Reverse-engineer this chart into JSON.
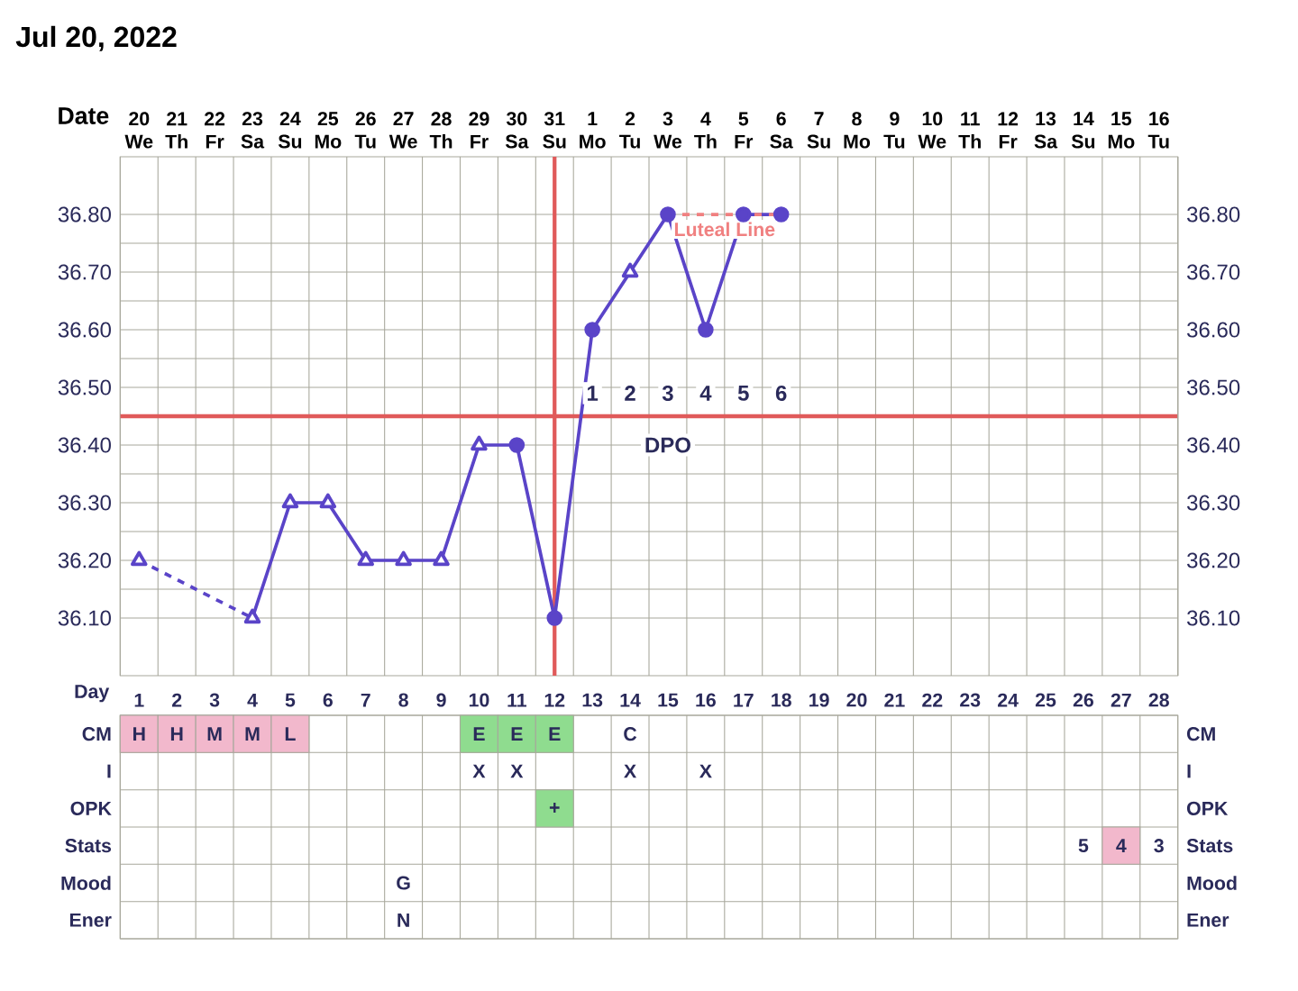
{
  "chart_data": [
    {
      "type": "line",
      "title": "Jul 20, 2022",
      "xlabel": "Date",
      "categories": [
        "20 We",
        "21 Th",
        "22 Fr",
        "23 Sa",
        "24 Su",
        "25 Mo",
        "26 Tu",
        "27 We",
        "28 Th",
        "29 Fr",
        "30 Sa",
        "31 Su",
        "1 Mo",
        "2 Tu",
        "3 We",
        "4 Th",
        "5 Fr",
        "6 Sa",
        "7 Su",
        "8 Mo",
        "9 Tu",
        "10 We",
        "11 Th",
        "12 Fr",
        "13 Sa",
        "14 Su",
        "15 Mo",
        "16 Tu"
      ],
      "series": [
        {
          "color": "#5a44c8",
          "line_style": "dashed",
          "marker": "none",
          "values": [
            36.2,
            null,
            null,
            36.1,
            null,
            null,
            null,
            null,
            null,
            null,
            null,
            null,
            null,
            null,
            null,
            null,
            null,
            null,
            null,
            null,
            null,
            null,
            null,
            null,
            null,
            null,
            null,
            null
          ]
        },
        {
          "color": "#5a44c8",
          "line_style": "solid",
          "marker": "none",
          "values": [
            null,
            null,
            null,
            36.1,
            36.3,
            36.3,
            36.2,
            36.2,
            36.2,
            36.4,
            36.4,
            36.1,
            36.6,
            36.7,
            36.8,
            36.6,
            36.8,
            36.8,
            null,
            null,
            null,
            null,
            null,
            null,
            null,
            null,
            null,
            null
          ]
        },
        {
          "type": "scatter",
          "color": "#5a44c8",
          "marker": "triangle",
          "values": [
            36.2,
            null,
            null,
            36.1,
            36.3,
            36.3,
            36.2,
            36.2,
            36.2,
            36.4,
            null,
            null,
            null,
            36.7,
            null,
            null,
            null,
            null,
            null,
            null,
            null,
            null,
            null,
            null,
            null,
            null,
            null,
            null
          ]
        },
        {
          "type": "scatter",
          "color": "#5a44c8",
          "marker": "circle",
          "values": [
            null,
            null,
            null,
            null,
            null,
            null,
            null,
            null,
            null,
            null,
            36.4,
            36.1,
            36.6,
            null,
            36.8,
            36.6,
            36.8,
            36.8,
            null,
            null,
            null,
            null,
            null,
            null,
            null,
            null,
            null,
            null
          ]
        },
        {
          "name": "Luteal Line",
          "color": "#f08080",
          "line_style": "dashed",
          "marker": "none",
          "values": [
            null,
            null,
            null,
            null,
            null,
            null,
            null,
            null,
            null,
            null,
            null,
            null,
            null,
            null,
            36.8,
            36.8,
            36.8,
            36.8,
            null,
            null,
            null,
            null,
            null,
            null,
            null,
            null,
            null,
            null
          ]
        }
      ],
      "ylim": [
        36.0,
        36.9
      ],
      "yticks": [
        {
          "value": 36.1,
          "label": "36.10"
        },
        {
          "value": 36.2,
          "label": "36.20"
        },
        {
          "value": 36.3,
          "label": "36.30"
        },
        {
          "value": 36.4,
          "label": "36.40"
        },
        {
          "value": 36.5,
          "label": "36.50"
        },
        {
          "value": 36.6,
          "label": "36.60"
        },
        {
          "value": 36.7,
          "label": "36.70"
        },
        {
          "value": 36.8,
          "label": "36.80"
        }
      ],
      "y2lim": [
        36.0,
        36.9
      ],
      "y2ticks": [
        {
          "value": 36.1,
          "label": "36.10"
        },
        {
          "value": 36.2,
          "label": "36.20"
        },
        {
          "value": 36.3,
          "label": "36.30"
        },
        {
          "value": 36.4,
          "label": "36.40"
        },
        {
          "value": 36.5,
          "label": "36.50"
        },
        {
          "value": 36.6,
          "label": "36.60"
        },
        {
          "value": 36.7,
          "label": "36.70"
        },
        {
          "value": 36.8,
          "label": "36.80"
        }
      ],
      "grid": true,
      "ref_lines": [
        {
          "axis": "x",
          "value": "31 Su",
          "color": "#e05a5a"
        },
        {
          "axis": "y",
          "value": 36.45,
          "color": "#e05a5a"
        }
      ],
      "annotations": [
        {
          "text": "1",
          "x": "1 Mo",
          "y": 36.49
        },
        {
          "text": "2",
          "x": "2 Tu",
          "y": 36.49
        },
        {
          "text": "3",
          "x": "3 We",
          "y": 36.49
        },
        {
          "text": "4",
          "x": "4 Th",
          "y": 36.49
        },
        {
          "text": "5",
          "x": "5 Fr",
          "y": 36.49
        },
        {
          "text": "6",
          "x": "6 Sa",
          "y": 36.49
        },
        {
          "text": "DPO",
          "x": "3 We",
          "y": 36.4
        }
      ]
    },
    {
      "type": "heatmap",
      "xlabel": "Day",
      "categories": [
        "1",
        "2",
        "3",
        "4",
        "5",
        "6",
        "7",
        "8",
        "9",
        "10",
        "11",
        "12",
        "13",
        "14",
        "15",
        "16",
        "17",
        "18",
        "19",
        "20",
        "21",
        "22",
        "23",
        "24",
        "25",
        "26",
        "27",
        "28"
      ],
      "y_categories": [
        "CM",
        "I",
        "OPK",
        "Stats",
        "Mood",
        "Ener"
      ],
      "y2_categories": [
        "CM",
        "I",
        "OPK",
        "Stats",
        "Mood",
        "Ener"
      ],
      "cells": [
        [
          "H",
          "H",
          "M",
          "M",
          "L",
          null,
          null,
          null,
          null,
          "E",
          "E",
          "E",
          null,
          "C",
          null,
          null,
          null,
          null,
          null,
          null,
          null,
          null,
          null,
          null,
          null,
          null,
          null,
          null
        ],
        [
          null,
          null,
          null,
          null,
          null,
          null,
          null,
          null,
          null,
          "X",
          "X",
          null,
          null,
          "X",
          null,
          "X",
          null,
          null,
          null,
          null,
          null,
          null,
          null,
          null,
          null,
          null,
          null,
          null
        ],
        [
          null,
          null,
          null,
          null,
          null,
          null,
          null,
          null,
          null,
          null,
          null,
          "+",
          null,
          null,
          null,
          null,
          null,
          null,
          null,
          null,
          null,
          null,
          null,
          null,
          null,
          null,
          null,
          null
        ],
        [
          null,
          null,
          null,
          null,
          null,
          null,
          null,
          null,
          null,
          null,
          null,
          null,
          null,
          null,
          null,
          null,
          null,
          null,
          null,
          null,
          null,
          null,
          null,
          null,
          null,
          "5",
          "4",
          "3"
        ],
        [
          null,
          null,
          null,
          null,
          null,
          null,
          null,
          "G",
          null,
          null,
          null,
          null,
          null,
          null,
          null,
          null,
          null,
          null,
          null,
          null,
          null,
          null,
          null,
          null,
          null,
          null,
          null,
          null
        ],
        [
          null,
          null,
          null,
          null,
          null,
          null,
          null,
          "N",
          null,
          null,
          null,
          null,
          null,
          null,
          null,
          null,
          null,
          null,
          null,
          null,
          null,
          null,
          null,
          null,
          null,
          null,
          null,
          null
        ]
      ],
      "colors": [
        [
          "#f2b8cc",
          "#f2b8cc",
          "#f2b8cc",
          "#f2b8cc",
          "#f2b8cc",
          null,
          null,
          null,
          null,
          "#8fdc8f",
          "#8fdc8f",
          "#8fdc8f",
          null,
          null,
          null,
          null,
          null,
          null,
          null,
          null,
          null,
          null,
          null,
          null,
          null,
          null,
          null,
          null
        ],
        [
          null,
          null,
          null,
          null,
          null,
          null,
          null,
          null,
          null,
          null,
          null,
          null,
          null,
          null,
          null,
          null,
          null,
          null,
          null,
          null,
          null,
          null,
          null,
          null,
          null,
          null,
          null,
          null
        ],
        [
          null,
          null,
          null,
          null,
          null,
          null,
          null,
          null,
          null,
          null,
          null,
          "#8fdc8f",
          null,
          null,
          null,
          null,
          null,
          null,
          null,
          null,
          null,
          null,
          null,
          null,
          null,
          null,
          null,
          null
        ],
        [
          null,
          null,
          null,
          null,
          null,
          null,
          null,
          null,
          null,
          null,
          null,
          null,
          null,
          null,
          null,
          null,
          null,
          null,
          null,
          null,
          null,
          null,
          null,
          null,
          null,
          null,
          "#f2b8cc",
          null
        ],
        [
          null,
          null,
          null,
          null,
          null,
          null,
          null,
          null,
          null,
          null,
          null,
          null,
          null,
          null,
          null,
          null,
          null,
          null,
          null,
          null,
          null,
          null,
          null,
          null,
          null,
          null,
          null,
          null
        ],
        [
          null,
          null,
          null,
          null,
          null,
          null,
          null,
          null,
          null,
          null,
          null,
          null,
          null,
          null,
          null,
          null,
          null,
          null,
          null,
          null,
          null,
          null,
          null,
          null,
          null,
          null,
          null,
          null
        ]
      ]
    }
  ]
}
